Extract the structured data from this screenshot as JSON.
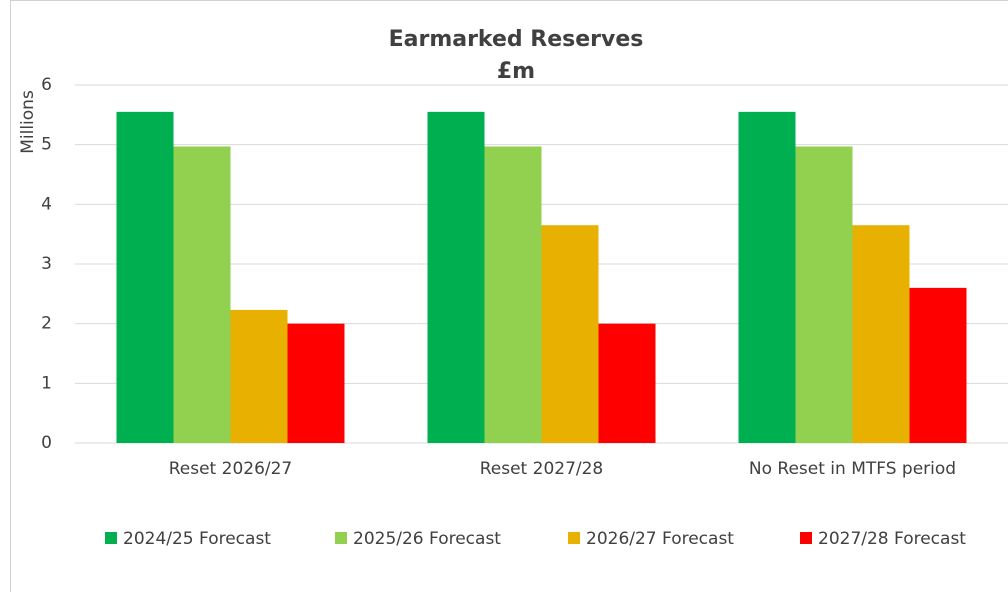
{
  "chart_data": {
    "type": "bar",
    "title": "Earmarked Reserves",
    "subtitle": "£m",
    "y_label": "Millions",
    "categories": [
      "Reset 2026/27",
      "Reset 2027/28",
      "No Reset in MTFS period"
    ],
    "series": [
      {
        "name": "2024/25 Forecast",
        "color": "#00b050",
        "values": [
          5.55,
          5.55,
          5.55
        ]
      },
      {
        "name": "2025/26 Forecast",
        "color": "#92d050",
        "values": [
          4.97,
          4.97,
          4.97
        ]
      },
      {
        "name": "2026/27 Forecast",
        "color": "#e8b000",
        "values": [
          2.23,
          3.65,
          3.65
        ]
      },
      {
        "name": "2027/28 Forecast",
        "color": "#ff0000",
        "values": [
          2.0,
          2.0,
          2.6
        ]
      }
    ],
    "ylim": [
      0,
      6
    ],
    "yticks": [
      0,
      1,
      2,
      3,
      4,
      5,
      6
    ],
    "grid": true,
    "legend": "bottom"
  }
}
